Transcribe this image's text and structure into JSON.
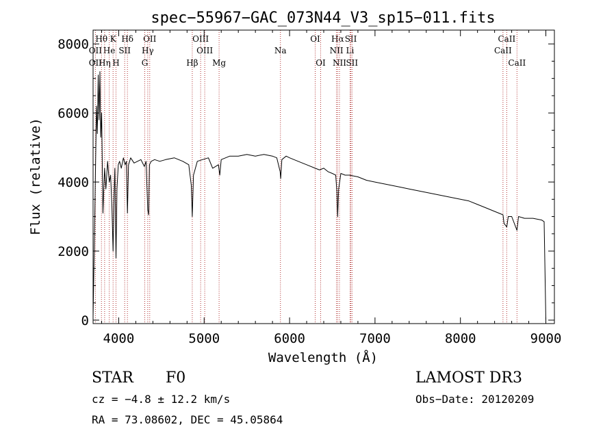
{
  "chart_data": {
    "type": "line",
    "title": "spec−55967−GAC_073N44_V3_sp15−011.fits",
    "xlabel": "Wavelength (Å)",
    "ylabel": "Flux (relative)",
    "xlim": [
      3700,
      9100
    ],
    "ylim": [
      -100,
      8400
    ],
    "x_ticks": [
      4000,
      5000,
      6000,
      7000,
      8000,
      9000
    ],
    "y_ticks": [
      0,
      2000,
      4000,
      6000,
      8000
    ],
    "series": [
      {
        "name": "spectrum",
        "x": [
          3700,
          3710,
          3720,
          3730,
          3740,
          3750,
          3760,
          3770,
          3780,
          3790,
          3800,
          3815,
          3835,
          3850,
          3870,
          3890,
          3905,
          3920,
          3934,
          3945,
          3955,
          3968,
          3980,
          3995,
          4010,
          4030,
          4055,
          4075,
          4090,
          4102,
          4115,
          4140,
          4180,
          4220,
          4260,
          4300,
          4320,
          4340,
          4350,
          4360,
          4380,
          4420,
          4480,
          4550,
          4650,
          4750,
          4820,
          4850,
          4861,
          4875,
          4920,
          4980,
          5050,
          5100,
          5167,
          5183,
          5200,
          5300,
          5400,
          5500,
          5600,
          5700,
          5800,
          5850,
          5890,
          5896,
          5910,
          5960,
          6000,
          6100,
          6200,
          6300,
          6350,
          6400,
          6450,
          6500,
          6540,
          6555,
          6563,
          6575,
          6600,
          6650,
          6700,
          6800,
          6900,
          7000,
          7100,
          7200,
          7300,
          7400,
          7500,
          7600,
          7700,
          7800,
          7900,
          8000,
          8100,
          8200,
          8300,
          8400,
          8498,
          8510,
          8542,
          8560,
          8600,
          8662,
          8680,
          8750,
          8850,
          8950,
          8980,
          9000
        ],
        "y": [
          100,
          1500,
          3000,
          4600,
          6200,
          5400,
          7100,
          5800,
          7200,
          5300,
          6000,
          3100,
          4400,
          3800,
          4600,
          4000,
          4200,
          3300,
          2000,
          3600,
          4400,
          1800,
          3800,
          4500,
          4600,
          4400,
          4700,
          4500,
          4600,
          3100,
          4500,
          4700,
          4550,
          4600,
          4650,
          4450,
          4600,
          3200,
          3050,
          4500,
          4600,
          4650,
          4600,
          4650,
          4700,
          4600,
          4500,
          3900,
          3000,
          4200,
          4600,
          4650,
          4700,
          4400,
          4500,
          4200,
          4650,
          4750,
          4750,
          4800,
          4750,
          4800,
          4750,
          4700,
          4300,
          4100,
          4650,
          4750,
          4700,
          4600,
          4500,
          4400,
          4350,
          4400,
          4300,
          4250,
          4200,
          3700,
          3000,
          3800,
          4250,
          4200,
          4200,
          4150,
          4050,
          4000,
          3950,
          3900,
          3850,
          3800,
          3750,
          3700,
          3650,
          3600,
          3550,
          3500,
          3450,
          3350,
          3250,
          3150,
          3050,
          2800,
          2700,
          3000,
          3000,
          2600,
          3000,
          2950,
          2950,
          2900,
          2850,
          0
        ]
      }
    ],
    "lines": [
      {
        "label": "Hθ",
        "wl": 3798,
        "row": 0
      },
      {
        "label": "K",
        "wl": 3934,
        "row": 0
      },
      {
        "label": "Hδ",
        "wl": 4102,
        "row": 0
      },
      {
        "label": "OII",
        "wl": 4363,
        "row": 0
      },
      {
        "label": "OIII",
        "wl": 4959,
        "row": 0
      },
      {
        "label": "OI",
        "wl": 6300,
        "row": 0
      },
      {
        "label": "Hα",
        "wl": 6563,
        "row": 0
      },
      {
        "label": "SII",
        "wl": 6717,
        "row": 0
      },
      {
        "label": "CaII",
        "wl": 8542,
        "row": 0
      },
      {
        "label": "OII",
        "wl": 3727,
        "row": 1
      },
      {
        "label": "He",
        "wl": 3889,
        "row": 1
      },
      {
        "label": "SII",
        "wl": 4070,
        "row": 1
      },
      {
        "label": "Hγ",
        "wl": 4340,
        "row": 1
      },
      {
        "label": "OIII",
        "wl": 5007,
        "row": 1
      },
      {
        "label": "Na",
        "wl": 5893,
        "row": 1
      },
      {
        "label": "NII",
        "wl": 6549,
        "row": 1
      },
      {
        "label": "Li",
        "wl": 6708,
        "row": 1
      },
      {
        "label": "CaII",
        "wl": 8498,
        "row": 1
      },
      {
        "label": "OII",
        "wl": 3727,
        "row": 2
      },
      {
        "label": "Hη",
        "wl": 3835,
        "row": 2
      },
      {
        "label": "H",
        "wl": 3968,
        "row": 2
      },
      {
        "label": "G",
        "wl": 4305,
        "row": 2
      },
      {
        "label": "Hβ",
        "wl": 4861,
        "row": 2
      },
      {
        "label": "Mg",
        "wl": 5175,
        "row": 2
      },
      {
        "label": "OI",
        "wl": 6364,
        "row": 2
      },
      {
        "label": "NII",
        "wl": 6584,
        "row": 2
      },
      {
        "label": "SII",
        "wl": 6731,
        "row": 2
      },
      {
        "label": "CaII",
        "wl": 8662,
        "row": 2
      }
    ]
  },
  "info": {
    "object_type": "STAR",
    "subclass": "F0",
    "survey": "LAMOST DR3",
    "cz": "cz = −4.8 ± 12.2 km/s",
    "obs_date": "Obs−Date: 20120209",
    "coords": "RA =  73.08602, DEC =  45.05864"
  },
  "colors": {
    "line_marker": "#b03030",
    "axis": "#000000",
    "spectrum": "#000000"
  }
}
